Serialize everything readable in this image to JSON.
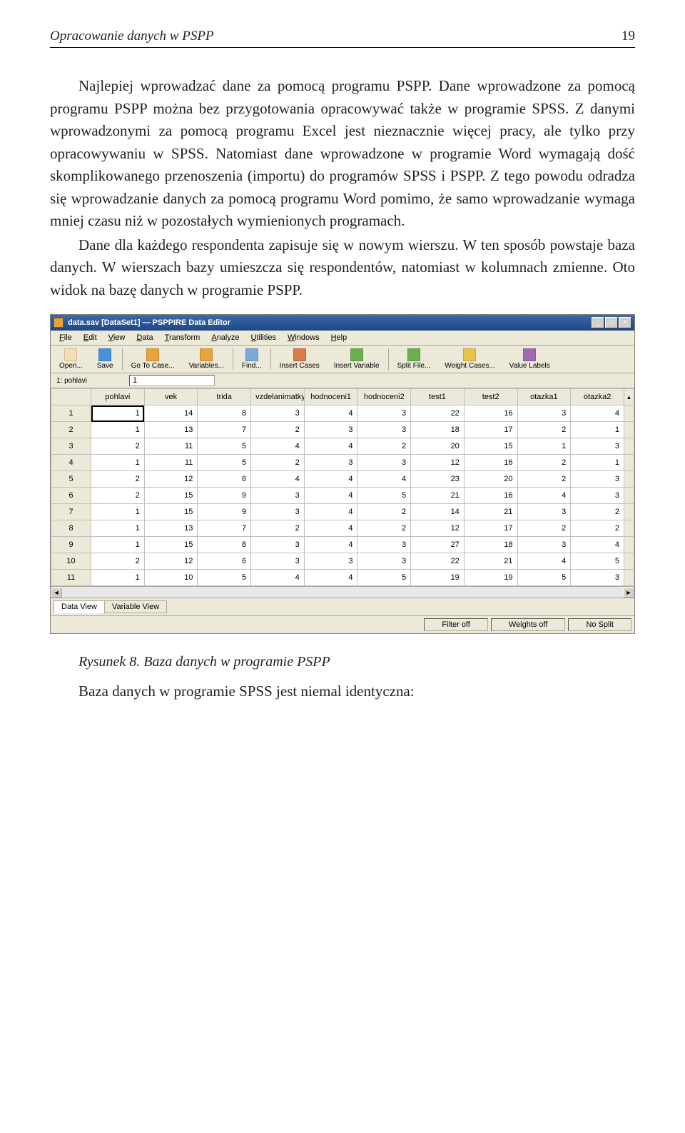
{
  "header": {
    "left": "Opracowanie danych w PSPP",
    "page": "19"
  },
  "para1": "Najlepiej wprowadzać dane za pomocą programu PSPP. Dane wprowadzone za pomocą programu PSPP można bez przygotowania opracowywać także w programie SPSS. Z danymi wprowadzonymi za pomocą programu Excel jest nieznacznie więcej pracy, ale tylko przy opracowywaniu w SPSS. Natomiast dane wprowadzone w programie Word wymagają dość skomplikowanego przenoszenia (importu) do programów SPSS i PSPP. Z tego powodu odradza się wprowadzanie danych za pomocą programu Word pomimo, że samo wprowadzanie wymaga mniej czasu niż w pozostałych wymienionych programach.",
  "para2": "Dane dla każdego respondenta zapisuje się w nowym wierszu. W ten sposób powstaje baza danych. W wierszach bazy umieszcza się respondentów, natomiast w kolumnach zmienne. Oto widok na bazę danych w programie PSPP.",
  "window": {
    "title": "data.sav [DataSet1] — PSPPIRE Data Editor",
    "menus": [
      "File",
      "Edit",
      "View",
      "Data",
      "Transform",
      "Analyze",
      "Utilities",
      "Windows",
      "Help"
    ],
    "toolbar": [
      {
        "label": "Open...",
        "color": "#f5deb3"
      },
      {
        "label": "Save",
        "color": "#4a90d9"
      },
      {
        "label": "Go To Case...",
        "color": "#e8a33d"
      },
      {
        "label": "Variables...",
        "color": "#e8a33d"
      },
      {
        "label": "Find...",
        "color": "#7aa8d8"
      },
      {
        "label": "Insert Cases",
        "color": "#d97a4a"
      },
      {
        "label": "Insert Variable",
        "color": "#6ab04c"
      },
      {
        "label": "Split File...",
        "color": "#6ab04c"
      },
      {
        "label": "Weight Cases...",
        "color": "#e8c34a"
      },
      {
        "label": "Value Labels",
        "color": "#a06ab0"
      }
    ],
    "toolbar_seps_after": [
      1,
      3,
      4,
      6
    ],
    "cellref": "1: pohlavi",
    "cellval": "1",
    "columns": [
      "pohlavi",
      "vek",
      "trida",
      "vzdelanimatky",
      "hodnoceni1",
      "hodnoceni2",
      "test1",
      "test2",
      "otazka1",
      "otazka2"
    ],
    "rows": [
      [
        1,
        14,
        8,
        3,
        4,
        3,
        22,
        16,
        3,
        4
      ],
      [
        1,
        13,
        7,
        2,
        3,
        3,
        18,
        17,
        2,
        1
      ],
      [
        2,
        11,
        5,
        4,
        4,
        2,
        20,
        15,
        1,
        3
      ],
      [
        1,
        11,
        5,
        2,
        3,
        3,
        12,
        16,
        2,
        1
      ],
      [
        2,
        12,
        6,
        4,
        4,
        4,
        23,
        20,
        2,
        3
      ],
      [
        2,
        15,
        9,
        3,
        4,
        5,
        21,
        16,
        4,
        3
      ],
      [
        1,
        15,
        9,
        3,
        4,
        2,
        14,
        21,
        3,
        2
      ],
      [
        1,
        13,
        7,
        2,
        4,
        2,
        12,
        17,
        2,
        2
      ],
      [
        1,
        15,
        8,
        3,
        4,
        3,
        27,
        18,
        3,
        4
      ],
      [
        2,
        12,
        6,
        3,
        3,
        3,
        22,
        21,
        4,
        5
      ],
      [
        1,
        10,
        5,
        4,
        4,
        5,
        19,
        19,
        5,
        3
      ]
    ],
    "tabs": [
      "Data View",
      "Variable View"
    ],
    "status": [
      "Filter off",
      "Weights off",
      "No Split"
    ]
  },
  "caption": "Rysunek 8. Baza danych w programie PSPP",
  "final": "Baza danych w programie SPSS jest niemal identyczna:"
}
